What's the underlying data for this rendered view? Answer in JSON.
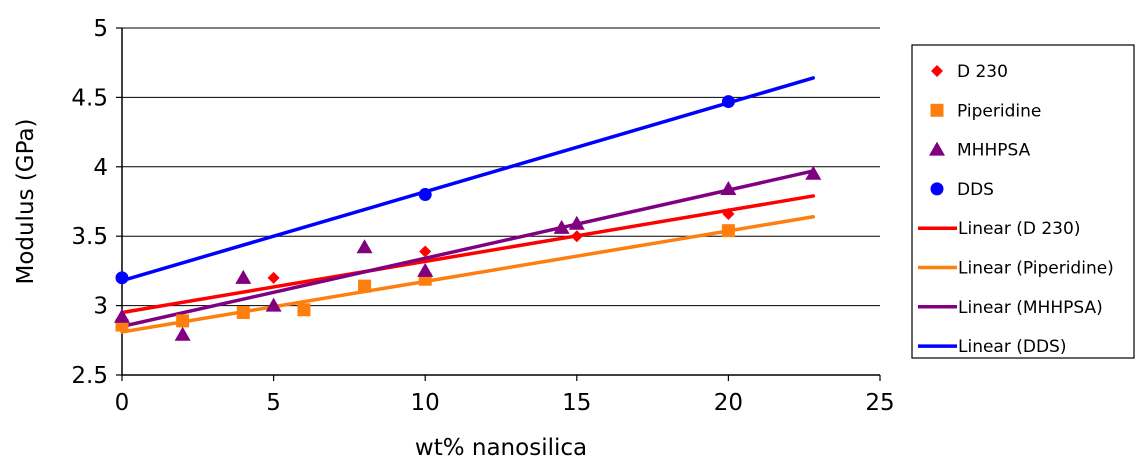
{
  "chart_data": {
    "type": "scatter",
    "title": "",
    "xlabel": "wt% nanosilica",
    "ylabel": "Modulus (GPa)",
    "xlim": [
      0,
      25
    ],
    "ylim": [
      2.5,
      5
    ],
    "xticks": [
      "0",
      "5",
      "10",
      "15",
      "20",
      "25"
    ],
    "yticks": [
      "2.5",
      "3",
      "3.5",
      "4",
      "4.5",
      "5"
    ],
    "grid": "horizontal",
    "legend_position": "right",
    "series": [
      {
        "name": "D 230",
        "marker": "diamond",
        "color": "#ff0000",
        "points": [
          [
            5,
            3.2
          ],
          [
            10,
            3.39
          ],
          [
            15,
            3.5
          ],
          [
            20,
            3.66
          ]
        ]
      },
      {
        "name": "Piperidine",
        "marker": "square",
        "color": "#ff7f0e",
        "points": [
          [
            0,
            2.86
          ],
          [
            2,
            2.89
          ],
          [
            4,
            2.95
          ],
          [
            6,
            2.97
          ],
          [
            8,
            3.14
          ],
          [
            10,
            3.19
          ],
          [
            20,
            3.54
          ]
        ]
      },
      {
        "name": "MHHPSA",
        "marker": "triangle",
        "color": "#800080",
        "points": [
          [
            0,
            2.92
          ],
          [
            2,
            2.79
          ],
          [
            4,
            3.2
          ],
          [
            5,
            3.0
          ],
          [
            8,
            3.42
          ],
          [
            10,
            3.25
          ],
          [
            14.5,
            3.56
          ],
          [
            15,
            3.59
          ],
          [
            20,
            3.84
          ],
          [
            22.8,
            3.95
          ]
        ]
      },
      {
        "name": "DDS",
        "marker": "circle",
        "color": "#0000ff",
        "points": [
          [
            0,
            3.2
          ],
          [
            10,
            3.8
          ],
          [
            20,
            4.47
          ]
        ]
      }
    ],
    "trendlines": [
      {
        "name": "Linear (D 230)",
        "color": "#ff0000",
        "from": [
          0,
          2.95
        ],
        "to": [
          22.8,
          3.79
        ]
      },
      {
        "name": "Linear (Piperidine)",
        "color": "#ff7f0e",
        "from": [
          0,
          2.81
        ],
        "to": [
          22.8,
          3.64
        ]
      },
      {
        "name": "Linear (MHHPSA)",
        "color": "#800080",
        "from": [
          0,
          2.85
        ],
        "to": [
          22.8,
          3.97
        ]
      },
      {
        "name": "Linear (DDS)",
        "color": "#0000ff",
        "from": [
          0,
          3.18
        ],
        "to": [
          22.8,
          4.64
        ]
      }
    ]
  }
}
